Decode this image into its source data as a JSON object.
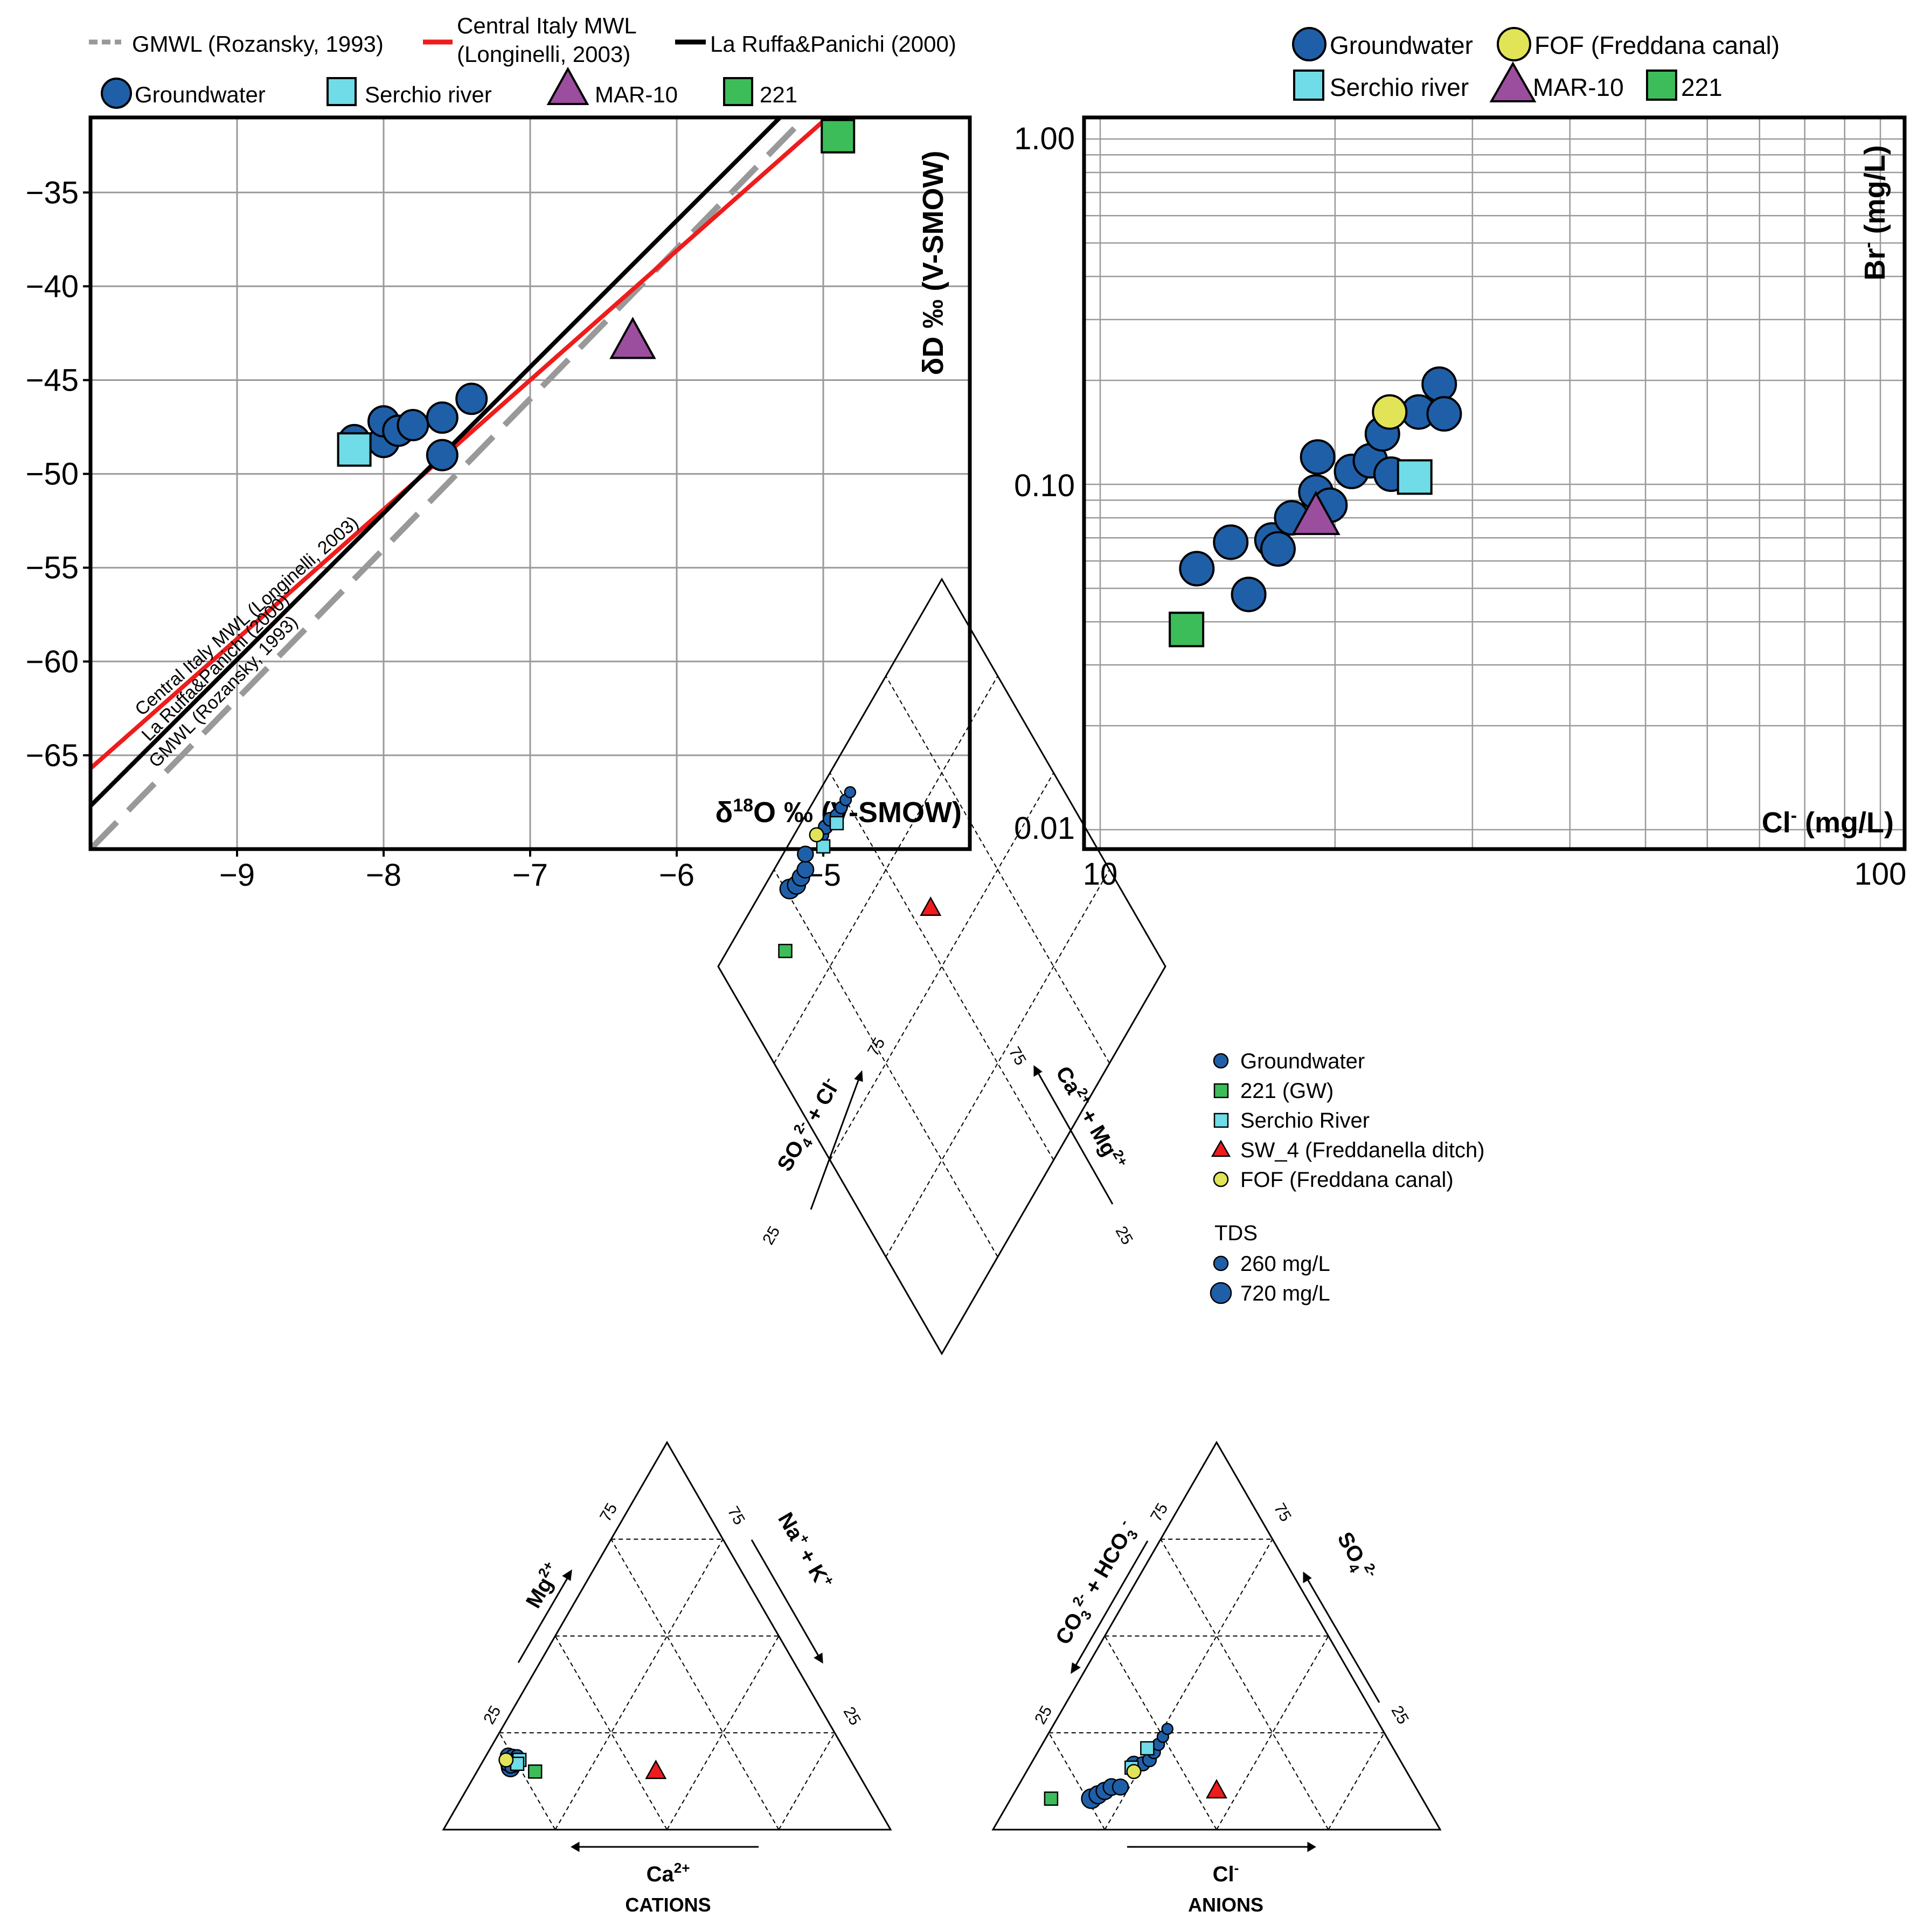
{
  "chart_data": [
    {
      "type": "scatter",
      "title": "",
      "xlabel": "δ¹⁸O ‰ (V-SMOW)",
      "xlabel_parts": {
        "main": "δ",
        "sup": "18",
        "rest": "O ‰ (V-SMOW)"
      },
      "ylabel": "δD ‰ (V-SMOW)",
      "xlim": [
        -10,
        -4
      ],
      "ylim": [
        -70,
        -31
      ],
      "xticks": [
        -9,
        -8,
        -7,
        -6,
        -5
      ],
      "xtick_labels": [
        "−9",
        "−8",
        "−7",
        "−6",
        "−5"
      ],
      "yticks": [
        -35,
        -40,
        -45,
        -50,
        -55,
        -60,
        -65
      ],
      "ytick_labels": [
        "−35",
        "−40",
        "−45",
        "−50",
        "−55",
        "−60",
        "−65"
      ],
      "grid": true,
      "lines": [
        {
          "name": "GMWL (Rozansky, 1993)",
          "label_on_plot": "GMWL (Rozansky, 1993)",
          "slope": 8,
          "intercept": 10,
          "color": "#999999",
          "dash": true
        },
        {
          "name": "Central Italy MWL (Longinelli, 2003)",
          "legend_lines": [
            "Central Italy MWL",
            "(Longinelli, 2003)"
          ],
          "label_on_plot": "Central Italy MWL (Longinelli, 2003)",
          "slope": 6.9,
          "intercept": 3.3,
          "color": "#ee1c1c",
          "dash": false
        },
        {
          "name": "La Ruffa&Panichi (2000)",
          "label_on_plot": "La Ruffa&Panichi (2000)",
          "slope": 7.8,
          "intercept": 10.3,
          "color": "#000000",
          "dash": false
        }
      ],
      "series": [
        {
          "name": "Groundwater",
          "marker": "circle",
          "color": "#1f5fa8",
          "points": [
            [
              -8.2,
              -48.2
            ],
            [
              -8.0,
              -48.3
            ],
            [
              -8.0,
              -47.2
            ],
            [
              -7.9,
              -47.7
            ],
            [
              -7.8,
              -47.4
            ],
            [
              -7.6,
              -47.0
            ],
            [
              -7.6,
              -49.0
            ],
            [
              -7.4,
              -46.0
            ]
          ]
        },
        {
          "name": "Serchio river",
          "marker": "square",
          "color": "#6fdce8",
          "points": [
            [
              -8.2,
              -48.7
            ]
          ]
        },
        {
          "name": "MAR-10",
          "marker": "triangle",
          "color": "#9b4e9d",
          "points": [
            [
              -6.3,
              -43.0
            ]
          ]
        },
        {
          "name": "221",
          "marker": "square",
          "color": "#3cbd5a",
          "points": [
            [
              -4.9,
              -32.0
            ]
          ]
        }
      ]
    },
    {
      "type": "scatter",
      "title": "",
      "xlabel": "Cl⁻ (mg/L)",
      "xlabel_parts": {
        "main": "Cl",
        "sup": "-",
        "rest": " (mg/L)"
      },
      "ylabel": "Br⁻ (mg/L)",
      "ylabel_parts": {
        "main": "Br",
        "sup": "-",
        "rest": " (mg/L)"
      },
      "xscale": "log",
      "yscale": "log",
      "xlim": [
        10,
        100
      ],
      "ylim": [
        0.01,
        1
      ],
      "xtick_labels": [
        "10",
        "100"
      ],
      "ytick_labels": [
        "1.00",
        "0.10",
        "0.01"
      ],
      "grid": true,
      "series": [
        {
          "name": "Groundwater",
          "marker": "circle",
          "color": "#1f5fa8",
          "points": [
            [
              13.3,
              0.057
            ],
            [
              14.7,
              0.068
            ],
            [
              15.5,
              0.048
            ],
            [
              16.6,
              0.069
            ],
            [
              16.9,
              0.065
            ],
            [
              17.6,
              0.08
            ],
            [
              18.9,
              0.095
            ],
            [
              19.0,
              0.12
            ],
            [
              19.7,
              0.087
            ],
            [
              21.0,
              0.109
            ],
            [
              22.2,
              0.117
            ],
            [
              23.0,
              0.14
            ],
            [
              23.6,
              0.107
            ],
            [
              25.6,
              0.162
            ],
            [
              27.2,
              0.195
            ],
            [
              27.6,
              0.16
            ]
          ]
        },
        {
          "name": "FOF (Freddana canal)",
          "marker": "circle",
          "color": "#e2e457",
          "points": [
            [
              23.5,
              0.162
            ]
          ]
        },
        {
          "name": "Serchio river",
          "marker": "square",
          "color": "#6fdce8",
          "points": [
            [
              25.3,
              0.105
            ]
          ]
        },
        {
          "name": "MAR-10",
          "marker": "triangle",
          "color": "#9b4e9d",
          "points": [
            [
              18.9,
              0.08
            ]
          ]
        },
        {
          "name": "221",
          "marker": "square",
          "color": "#3cbd5a",
          "points": [
            [
              12.9,
              0.038
            ]
          ]
        }
      ]
    },
    {
      "type": "piper",
      "title": "",
      "grid": true,
      "tick_label_25": "25",
      "tick_label_75": "75",
      "cation_title": "CATIONS",
      "anion_title": "ANIONS",
      "cation_axes": {
        "left": "Mg²⁺",
        "right": "Na⁺ + K⁺",
        "bottom": "Ca²⁺"
      },
      "anion_axes": {
        "left": "CO₃²⁻ + HCO₃⁻",
        "right": "SO₄²⁻",
        "bottom": "Cl⁻"
      },
      "diamond_axes": {
        "left": "SO₄²⁻ + Cl⁻",
        "right": "Ca²⁺ + Mg²⁺"
      },
      "legend": [
        {
          "label": "Groundwater",
          "marker": "circle",
          "color": "#1f5fa8"
        },
        {
          "label": "221 (GW)",
          "marker": "square",
          "color": "#3cbd5a"
        },
        {
          "label": "Serchio River",
          "marker": "square",
          "color": "#6fdce8"
        },
        {
          "label": "SW_4 (Freddanella ditch)",
          "marker": "triangle",
          "color": "#ee1c1c"
        },
        {
          "label": "FOF (Freddana canal)",
          "marker": "circle",
          "color": "#e2e457"
        }
      ],
      "tds_title": "TDS",
      "tds_legend": [
        {
          "label": "260 mg/L",
          "value": 260
        },
        {
          "label": "720 mg/L",
          "value": 720
        }
      ],
      "samples": [
        {
          "group": "Groundwater",
          "tds": 720,
          "ca": 76,
          "mg": 18,
          "nak": 6,
          "hco3": 74,
          "so4": 8,
          "cl": 18
        },
        {
          "group": "Groundwater",
          "tds": 640,
          "ca": 77,
          "mg": 16,
          "nak": 7,
          "hco3": 72,
          "so4": 9,
          "cl": 19
        },
        {
          "group": "Groundwater",
          "tds": 600,
          "ca": 76,
          "mg": 17,
          "nak": 7,
          "hco3": 70,
          "so4": 10,
          "cl": 20
        },
        {
          "group": "Groundwater",
          "tds": 560,
          "ca": 75,
          "mg": 18,
          "nak": 7,
          "hco3": 68,
          "so4": 11,
          "cl": 21
        },
        {
          "group": "Groundwater",
          "tds": 520,
          "ca": 76,
          "mg": 19,
          "nak": 5,
          "hco3": 66,
          "so4": 11,
          "cl": 23
        },
        {
          "group": "Groundwater",
          "tds": 480,
          "ca": 77,
          "mg": 17,
          "nak": 6,
          "hco3": 60,
          "so4": 17,
          "cl": 23
        },
        {
          "group": "Groundwater",
          "tds": 430,
          "ca": 76,
          "mg": 18,
          "nak": 6,
          "hco3": 58,
          "so4": 17,
          "cl": 25
        },
        {
          "group": "Groundwater",
          "tds": 400,
          "ca": 75,
          "mg": 19,
          "nak": 6,
          "hco3": 56,
          "so4": 18,
          "cl": 26
        },
        {
          "group": "Groundwater",
          "tds": 360,
          "ca": 74,
          "mg": 19,
          "nak": 7,
          "hco3": 54,
          "so4": 20,
          "cl": 26
        },
        {
          "group": "Groundwater",
          "tds": 320,
          "ca": 75,
          "mg": 18,
          "nak": 7,
          "hco3": 52,
          "so4": 22,
          "cl": 26
        },
        {
          "group": "Groundwater",
          "tds": 280,
          "ca": 76,
          "mg": 17,
          "nak": 7,
          "hco3": 50,
          "so4": 24,
          "cl": 26
        },
        {
          "group": "Groundwater",
          "tds": 260,
          "ca": 77,
          "mg": 16,
          "nak": 7,
          "hco3": 48,
          "so4": 26,
          "cl": 26
        },
        {
          "group": "221 (GW)",
          "tds": 500,
          "ca": 72,
          "mg": 15,
          "nak": 13,
          "hco3": 83,
          "so4": 8,
          "cl": 9
        },
        {
          "group": "Serchio River",
          "tds": 300,
          "ca": 74,
          "mg": 18,
          "nak": 8,
          "hco3": 61,
          "so4": 16,
          "cl": 23
        },
        {
          "group": "Serchio River",
          "tds": 300,
          "ca": 75,
          "mg": 17,
          "nak": 8,
          "hco3": 55,
          "so4": 21,
          "cl": 24
        },
        {
          "group": "SW_4 (Freddanella ditch)",
          "tds": 400,
          "ca": 45,
          "mg": 15,
          "nak": 40,
          "hco3": 45,
          "so4": 10,
          "cl": 45
        },
        {
          "group": "FOF (Freddana canal)",
          "tds": 420,
          "ca": 77,
          "mg": 18,
          "nak": 5,
          "hco3": 61,
          "so4": 15,
          "cl": 24
        }
      ]
    }
  ]
}
